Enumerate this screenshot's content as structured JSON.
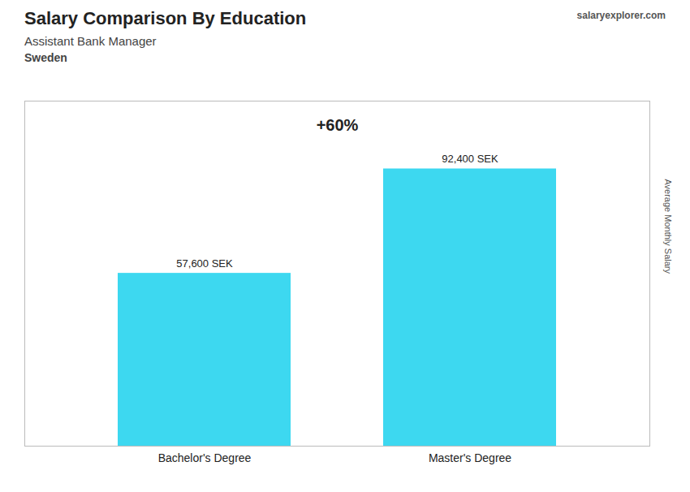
{
  "chart_data": {
    "type": "bar",
    "title": "Salary Comparison By Education",
    "subtitle": "Assistant Bank Manager",
    "annotations": [
      "Sweden",
      "+60%",
      "salaryexplorer.com"
    ],
    "ylabel": "Average Monthly Salary",
    "categories": [
      "Bachelor's Degree",
      "Master's Degree"
    ],
    "values": [
      57600,
      92400
    ],
    "value_labels": [
      "57,600 SEK",
      "92,400 SEK"
    ],
    "data_labels": true,
    "color": "#3DD8F0",
    "ylim": [
      0,
      115000
    ],
    "tick_labels": "x",
    "grid": false
  }
}
